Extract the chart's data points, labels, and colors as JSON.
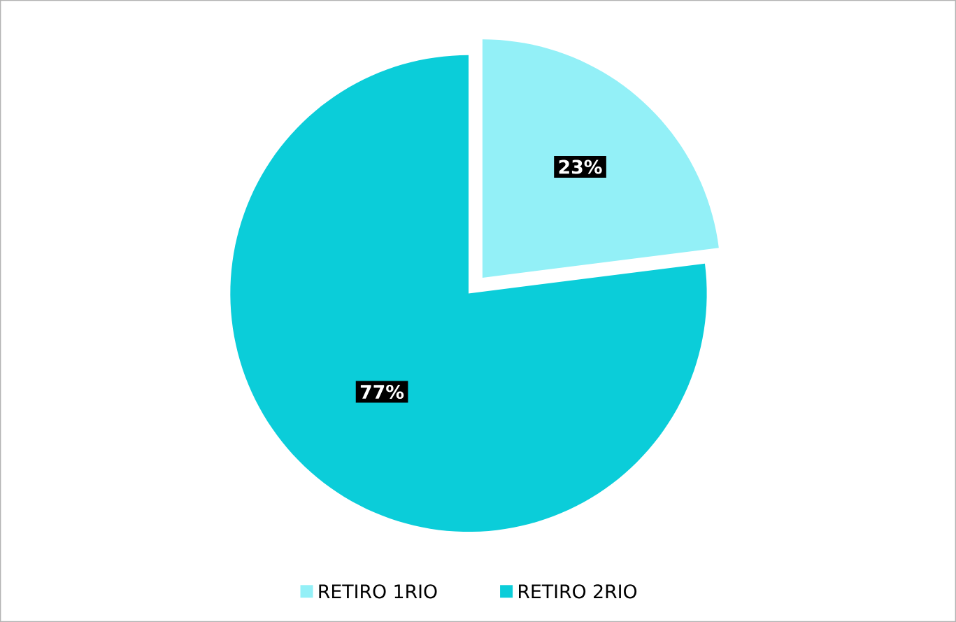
{
  "chart_data": {
    "type": "pie",
    "categories": [
      "RETIRO 1RIO",
      "RETIRO 2RIO"
    ],
    "values": [
      23,
      77
    ],
    "colors": [
      "#93f0f7",
      "#0bcdd9"
    ],
    "value_labels": [
      "23%",
      "77%"
    ],
    "legend": "bottom"
  }
}
